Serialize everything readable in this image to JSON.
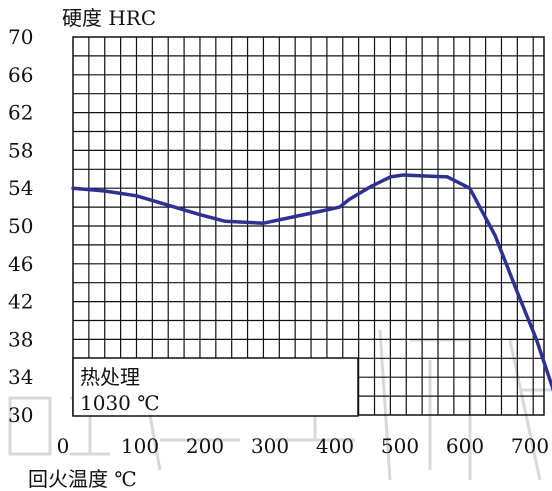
{
  "chart_data": {
    "type": "line",
    "ylabel": "硬度  HRC",
    "xlabel": "回火温度  ℃",
    "xlim": [
      0,
      742
    ],
    "ylim": [
      30,
      70
    ],
    "x_ticks": [
      "0",
      "100",
      "200",
      "300",
      "400",
      "500",
      "600",
      "700"
    ],
    "y_ticks": [
      "70",
      "66",
      "62",
      "58",
      "54",
      "50",
      "46",
      "42",
      "38",
      "34",
      "30"
    ],
    "grid": true,
    "annotation": {
      "line1": "热处理",
      "line2": "1030  ℃"
    },
    "series": [
      {
        "color": "#2e3192",
        "points": [
          [
            0,
            54.0
          ],
          [
            50,
            53.7
          ],
          [
            100,
            53.2
          ],
          [
            150,
            52.2
          ],
          [
            200,
            51.2
          ],
          [
            240,
            50.5
          ],
          [
            300,
            50.3
          ],
          [
            350,
            51.0
          ],
          [
            400,
            51.7
          ],
          [
            420,
            52.0
          ],
          [
            435,
            52.8
          ],
          [
            470,
            54.2
          ],
          [
            500,
            55.2
          ],
          [
            520,
            55.4
          ],
          [
            550,
            55.3
          ],
          [
            590,
            55.2
          ],
          [
            625,
            54.0
          ],
          [
            665,
            49.0
          ],
          [
            700,
            43.0
          ],
          [
            730,
            38.0
          ],
          [
            760,
            32.0
          ]
        ]
      }
    ]
  }
}
